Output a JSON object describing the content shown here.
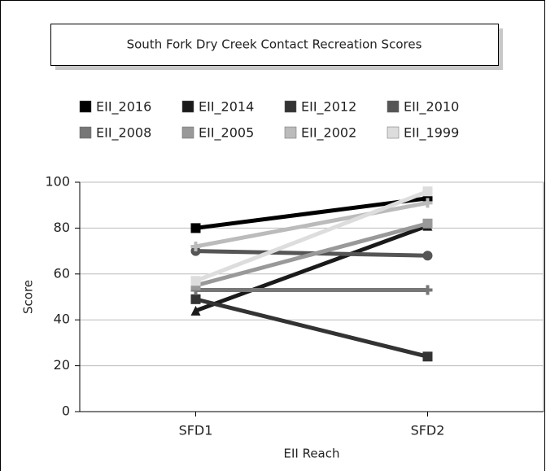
{
  "chart_data": {
    "type": "line",
    "title": "South Fork Dry Creek Contact Recreation Scores",
    "x_label": "EII Reach",
    "y_label": "Score",
    "categories": [
      "SFD1",
      "SFD2"
    ],
    "ylim": [
      0,
      100
    ],
    "yticks": [
      0,
      20,
      40,
      60,
      80,
      100
    ],
    "grid": true,
    "series": [
      {
        "name": "EII_2016",
        "color": "#000000",
        "marker": "square",
        "values": [
          80,
          93
        ]
      },
      {
        "name": "EII_2014",
        "color": "#1a1a1a",
        "marker": "triangle",
        "values": [
          44,
          81
        ]
      },
      {
        "name": "EII_2012",
        "color": "#333333",
        "marker": "square",
        "values": [
          49,
          24
        ]
      },
      {
        "name": "EII_2010",
        "color": "#555555",
        "marker": "circle",
        "values": [
          70,
          68
        ]
      },
      {
        "name": "EII_2008",
        "color": "#777777",
        "marker": "cross",
        "values": [
          53,
          53
        ]
      },
      {
        "name": "EII_2005",
        "color": "#999999",
        "marker": "square",
        "values": [
          55,
          82
        ]
      },
      {
        "name": "EII_2002",
        "color": "#bbbbbb",
        "marker": "cross",
        "values": [
          72,
          91
        ]
      },
      {
        "name": "EII_1999",
        "color": "#dddddd",
        "marker": "square",
        "values": [
          57,
          96
        ]
      }
    ]
  }
}
